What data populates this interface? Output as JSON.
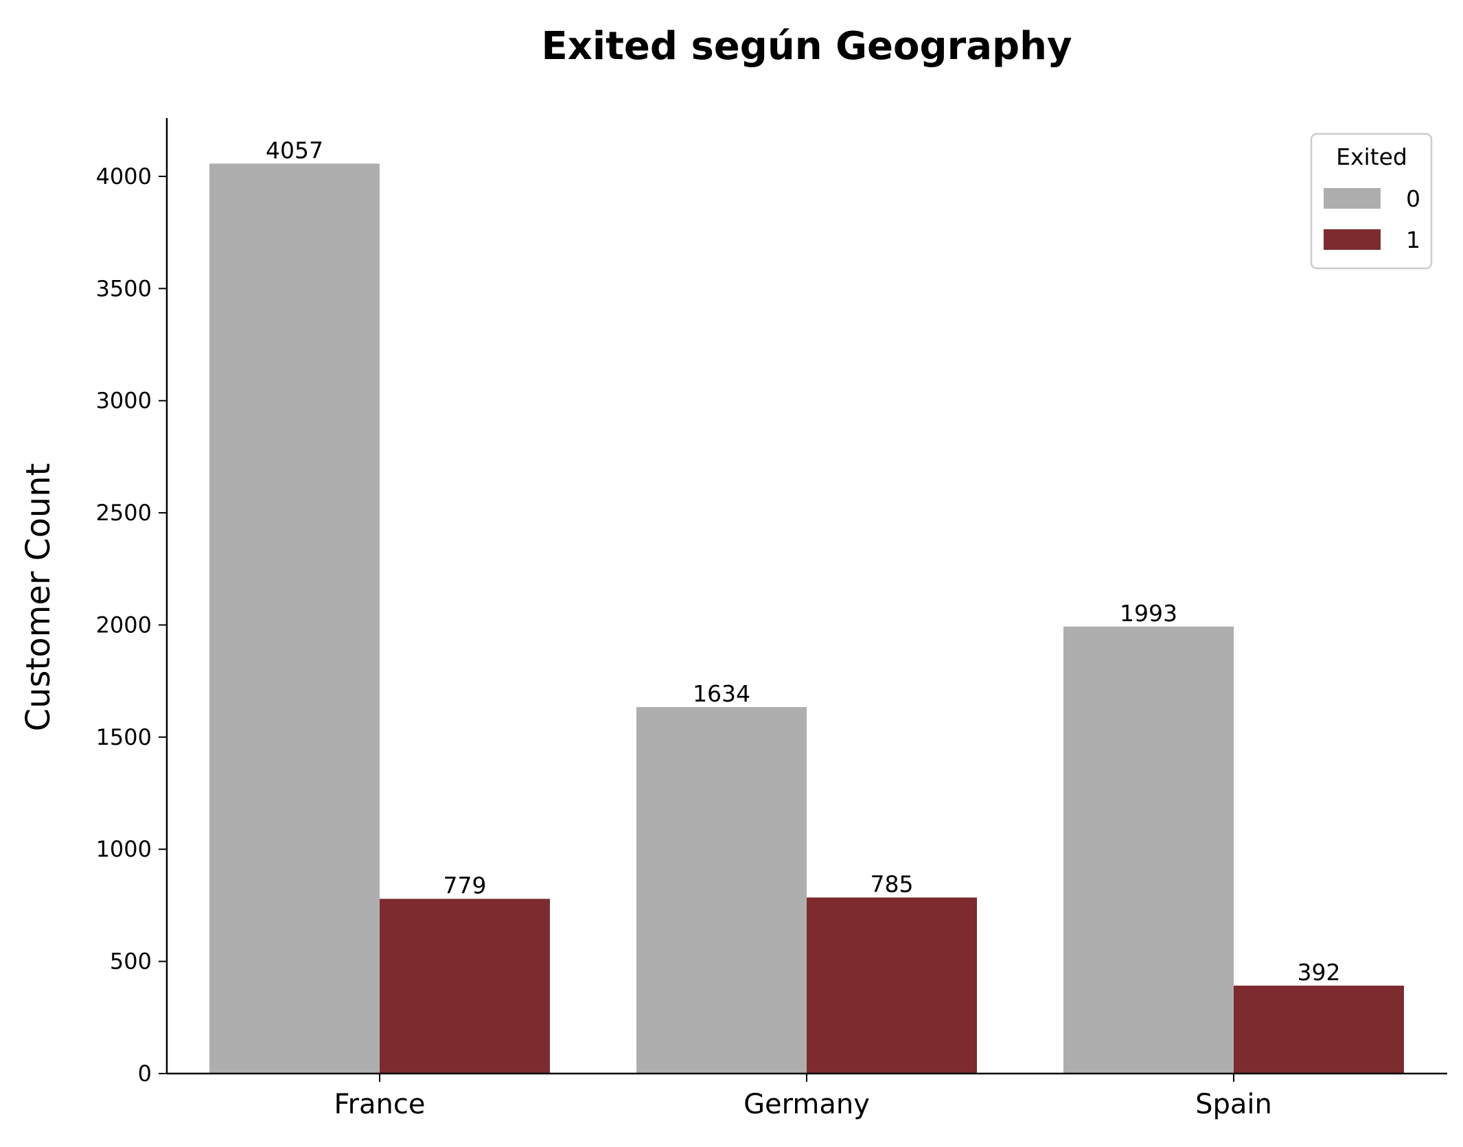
{
  "chart_data": {
    "type": "bar",
    "title": "Exited según Geography",
    "xlabel": "",
    "ylabel": "Customer Count",
    "categories": [
      "France",
      "Germany",
      "Spain"
    ],
    "series": [
      {
        "name": "0",
        "values": [
          4057,
          1634,
          1993
        ],
        "color": "#afaeaf"
      },
      {
        "name": "1",
        "values": [
          779,
          785,
          392
        ],
        "color": "#7d2b2f"
      }
    ],
    "ylim": [
      0,
      4260
    ],
    "yticks": [
      0,
      500,
      1000,
      1500,
      2000,
      2500,
      3000,
      3500,
      4000
    ],
    "data_labels": [
      [
        "4057",
        "1634",
        "1993"
      ],
      [
        "779",
        "785",
        "392"
      ]
    ],
    "legend": {
      "title": "Exited",
      "placement": "top-right"
    },
    "grid": false
  }
}
